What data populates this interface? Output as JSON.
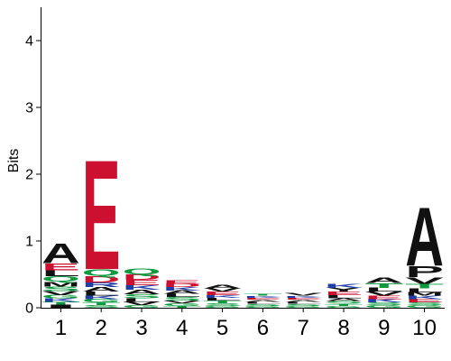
{
  "chart_data": {
    "type": "sequence-logo",
    "ylabel": "Bits",
    "ylim": [
      0,
      4.5
    ],
    "yticks": [
      "0",
      "1",
      "2",
      "3",
      "4"
    ],
    "ytick_values": [
      0,
      1,
      2,
      3,
      4
    ],
    "positions": [
      "1",
      "2",
      "3",
      "4",
      "5",
      "6",
      "7",
      "8",
      "9",
      "10"
    ],
    "colors": {
      "acidic": "#cc1030",
      "polar": "#0b9a3e",
      "basic": "#1f3fa8",
      "hydrophobic": "#111111",
      "other": "#9a47b0"
    },
    "columns": [
      {
        "position": "1",
        "letters": [
          {
            "letter": "I",
            "bits": 0.05,
            "color": "#111111"
          },
          {
            "letter": "T",
            "bits": 0.04,
            "color": "#0b9a3e"
          },
          {
            "letter": "K",
            "bits": 0.05,
            "color": "#1f3fa8"
          },
          {
            "letter": "G",
            "bits": 0.05,
            "color": "#0b9a3e"
          },
          {
            "letter": "V",
            "bits": 0.06,
            "color": "#111111"
          },
          {
            "letter": "S",
            "bits": 0.07,
            "color": "#0b9a3e"
          },
          {
            "letter": "M",
            "bits": 0.07,
            "color": "#111111"
          },
          {
            "letter": "Q",
            "bits": 0.08,
            "color": "#0b9a3e"
          },
          {
            "letter": "L",
            "bits": 0.09,
            "color": "#111111"
          },
          {
            "letter": "E",
            "bits": 0.11,
            "color": "#cc1030"
          },
          {
            "letter": "A",
            "bits": 0.3,
            "color": "#111111"
          }
        ]
      },
      {
        "position": "2",
        "letters": [
          {
            "letter": "S",
            "bits": 0.04,
            "color": "#0b9a3e"
          },
          {
            "letter": "T",
            "bits": 0.04,
            "color": "#0b9a3e"
          },
          {
            "letter": "G",
            "bits": 0.05,
            "color": "#0b9a3e"
          },
          {
            "letter": "K",
            "bits": 0.05,
            "color": "#1f3fa8"
          },
          {
            "letter": "L",
            "bits": 0.06,
            "color": "#111111"
          },
          {
            "letter": "A",
            "bits": 0.07,
            "color": "#111111"
          },
          {
            "letter": "R",
            "bits": 0.07,
            "color": "#1f3fa8"
          },
          {
            "letter": "D",
            "bits": 0.1,
            "color": "#cc1030"
          },
          {
            "letter": "Q",
            "bits": 0.1,
            "color": "#0b9a3e"
          },
          {
            "letter": "E",
            "bits": 1.68,
            "color": "#cc1030"
          }
        ]
      },
      {
        "position": "3",
        "letters": [
          {
            "letter": "G",
            "bits": 0.04,
            "color": "#0b9a3e"
          },
          {
            "letter": "V",
            "bits": 0.05,
            "color": "#111111"
          },
          {
            "letter": "L",
            "bits": 0.05,
            "color": "#111111"
          },
          {
            "letter": "S",
            "bits": 0.06,
            "color": "#0b9a3e"
          },
          {
            "letter": "A",
            "bits": 0.07,
            "color": "#111111"
          },
          {
            "letter": "K",
            "bits": 0.07,
            "color": "#1f3fa8"
          },
          {
            "letter": "E",
            "bits": 0.08,
            "color": "#cc1030"
          },
          {
            "letter": "D",
            "bits": 0.08,
            "color": "#cc1030"
          },
          {
            "letter": "Q",
            "bits": 0.09,
            "color": "#0b9a3e"
          }
        ]
      },
      {
        "position": "4",
        "letters": [
          {
            "letter": "T",
            "bits": 0.03,
            "color": "#0b9a3e"
          },
          {
            "letter": "G",
            "bits": 0.04,
            "color": "#0b9a3e"
          },
          {
            "letter": "V",
            "bits": 0.04,
            "color": "#111111"
          },
          {
            "letter": "S",
            "bits": 0.05,
            "color": "#0b9a3e"
          },
          {
            "letter": "L",
            "bits": 0.05,
            "color": "#111111"
          },
          {
            "letter": "A",
            "bits": 0.05,
            "color": "#111111"
          },
          {
            "letter": "K",
            "bits": 0.05,
            "color": "#1f3fa8"
          },
          {
            "letter": "D",
            "bits": 0.05,
            "color": "#cc1030"
          },
          {
            "letter": "E",
            "bits": 0.05,
            "color": "#cc1030"
          }
        ]
      },
      {
        "position": "5",
        "letters": [
          {
            "letter": "G",
            "bits": 0.03,
            "color": "#0b9a3e"
          },
          {
            "letter": "S",
            "bits": 0.04,
            "color": "#0b9a3e"
          },
          {
            "letter": "T",
            "bits": 0.04,
            "color": "#0b9a3e"
          },
          {
            "letter": "L",
            "bits": 0.04,
            "color": "#111111"
          },
          {
            "letter": "K",
            "bits": 0.04,
            "color": "#1f3fa8"
          },
          {
            "letter": "E",
            "bits": 0.05,
            "color": "#cc1030"
          },
          {
            "letter": "V",
            "bits": 0.05,
            "color": "#111111"
          },
          {
            "letter": "A",
            "bits": 0.05,
            "color": "#111111"
          }
        ]
      },
      {
        "position": "6",
        "letters": [
          {
            "letter": "G",
            "bits": 0.03,
            "color": "#0b9a3e"
          },
          {
            "letter": "S",
            "bits": 0.03,
            "color": "#0b9a3e"
          },
          {
            "letter": "L",
            "bits": 0.03,
            "color": "#111111"
          },
          {
            "letter": "A",
            "bits": 0.03,
            "color": "#111111"
          },
          {
            "letter": "E",
            "bits": 0.03,
            "color": "#cc1030"
          },
          {
            "letter": "K",
            "bits": 0.03,
            "color": "#1f3fa8"
          },
          {
            "letter": "T",
            "bits": 0.03,
            "color": "#0b9a3e"
          }
        ]
      },
      {
        "position": "7",
        "letters": [
          {
            "letter": "G",
            "bits": 0.03,
            "color": "#0b9a3e"
          },
          {
            "letter": "S",
            "bits": 0.03,
            "color": "#0b9a3e"
          },
          {
            "letter": "L",
            "bits": 0.03,
            "color": "#111111"
          },
          {
            "letter": "A",
            "bits": 0.03,
            "color": "#111111"
          },
          {
            "letter": "E",
            "bits": 0.03,
            "color": "#cc1030"
          },
          {
            "letter": "K",
            "bits": 0.03,
            "color": "#1f3fa8"
          },
          {
            "letter": "V",
            "bits": 0.04,
            "color": "#111111"
          }
        ]
      },
      {
        "position": "8",
        "letters": [
          {
            "letter": "G",
            "bits": 0.03,
            "color": "#0b9a3e"
          },
          {
            "letter": "T",
            "bits": 0.03,
            "color": "#0b9a3e"
          },
          {
            "letter": "S",
            "bits": 0.04,
            "color": "#0b9a3e"
          },
          {
            "letter": "A",
            "bits": 0.04,
            "color": "#111111"
          },
          {
            "letter": "L",
            "bits": 0.05,
            "color": "#111111"
          },
          {
            "letter": "E",
            "bits": 0.05,
            "color": "#cc1030"
          },
          {
            "letter": "Y",
            "bits": 0.06,
            "color": "#111111"
          },
          {
            "letter": "K",
            "bits": 0.06,
            "color": "#1f3fa8"
          }
        ]
      },
      {
        "position": "9",
        "letters": [
          {
            "letter": "G",
            "bits": 0.04,
            "color": "#0b9a3e"
          },
          {
            "letter": "S",
            "bits": 0.04,
            "color": "#0b9a3e"
          },
          {
            "letter": "K",
            "bits": 0.05,
            "color": "#1f3fa8"
          },
          {
            "letter": "E",
            "bits": 0.05,
            "color": "#cc1030"
          },
          {
            "letter": "V",
            "bits": 0.06,
            "color": "#111111"
          },
          {
            "letter": "L",
            "bits": 0.06,
            "color": "#111111"
          },
          {
            "letter": "T",
            "bits": 0.07,
            "color": "#0b9a3e"
          },
          {
            "letter": "A",
            "bits": 0.08,
            "color": "#111111"
          }
        ]
      },
      {
        "position": "10",
        "letters": [
          {
            "letter": "G",
            "bits": 0.04,
            "color": "#0b9a3e"
          },
          {
            "letter": "S",
            "bits": 0.04,
            "color": "#0b9a3e"
          },
          {
            "letter": "E",
            "bits": 0.05,
            "color": "#cc1030"
          },
          {
            "letter": "K",
            "bits": 0.05,
            "color": "#1f3fa8"
          },
          {
            "letter": "M",
            "bits": 0.05,
            "color": "#111111"
          },
          {
            "letter": "L",
            "bits": 0.06,
            "color": "#111111"
          },
          {
            "letter": "T",
            "bits": 0.07,
            "color": "#0b9a3e"
          },
          {
            "letter": "V",
            "bits": 0.1,
            "color": "#111111"
          },
          {
            "letter": "P",
            "bits": 0.17,
            "color": "#111111"
          },
          {
            "letter": "A",
            "bits": 0.9,
            "color": "#111111"
          }
        ]
      }
    ]
  }
}
